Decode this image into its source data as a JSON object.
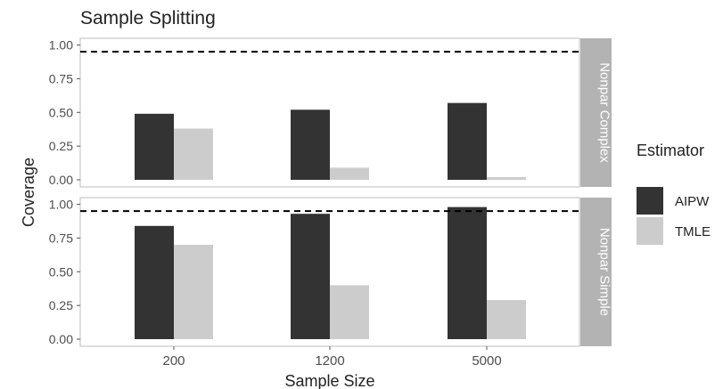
{
  "chart_data": {
    "type": "bar",
    "title": "Sample Splitting",
    "xlabel": "Sample Size",
    "ylabel": "Coverage",
    "categories": [
      "200",
      "1200",
      "5000"
    ],
    "ylim": [
      0,
      1.05
    ],
    "yticks": [
      "0.00",
      "0.25",
      "0.50",
      "0.75",
      "1.00"
    ],
    "reference_line": 0.95,
    "legend": {
      "title": "Estimator",
      "placement": "right"
    },
    "series_colors": {
      "AIPW": "#333333",
      "TMLE": "#cccccc"
    },
    "strip_color": "#b3b3b3",
    "panels": [
      {
        "label": "Nonpar Complex",
        "series": [
          {
            "name": "AIPW",
            "values": [
              0.49,
              0.52,
              0.57
            ]
          },
          {
            "name": "TMLE",
            "values": [
              0.38,
              0.09,
              0.02
            ]
          }
        ]
      },
      {
        "label": "Nonpar Simple",
        "series": [
          {
            "name": "AIPW",
            "values": [
              0.84,
              0.93,
              0.98
            ]
          },
          {
            "name": "TMLE",
            "values": [
              0.7,
              0.4,
              0.29
            ]
          }
        ]
      }
    ]
  }
}
